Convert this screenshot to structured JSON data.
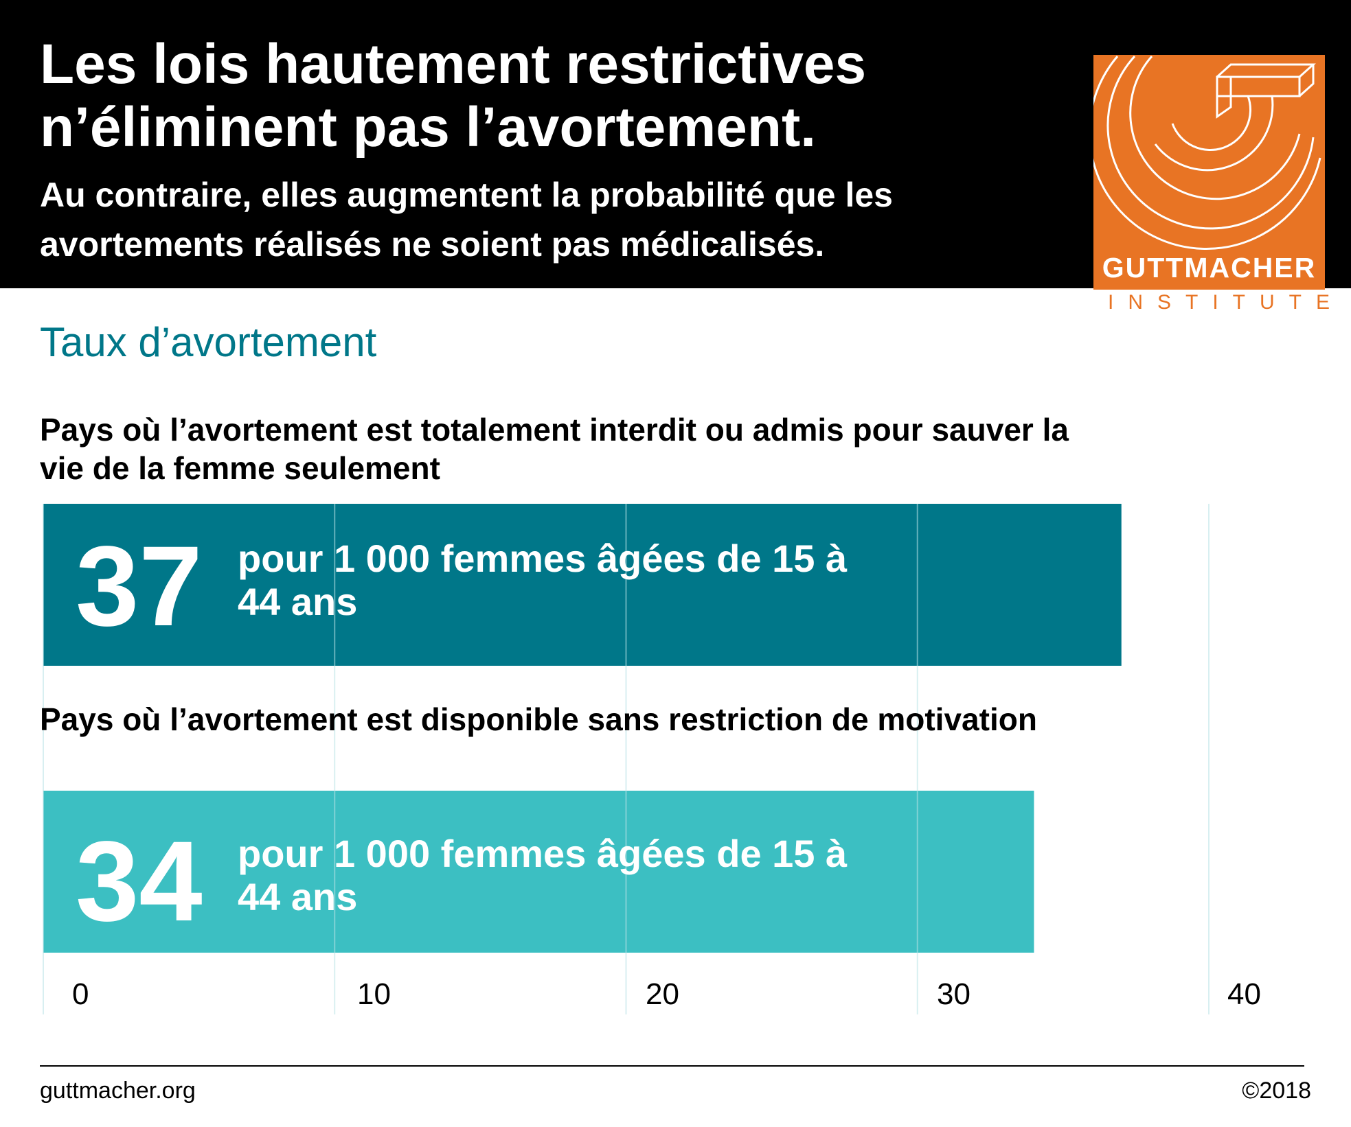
{
  "header": {
    "title": "Les lois hautement restrictives n’éliminent pas l’avortement.",
    "subtitle": "Au contraire, elles augmentent la probabilité que les avortements réalisés ne soient pas médicalisés."
  },
  "logo": {
    "name": "GUTTMACHER",
    "sub": "INSTITUTE",
    "color": "#e87424"
  },
  "chart_data": {
    "type": "bar",
    "orientation": "horizontal",
    "title": "Taux d’avortement",
    "categories": [
      "Pays où l’avortement est totalement interdit ou admis pour sauver la vie de la femme seulement",
      "Pays où l’avortement est disponible sans restriction de motivation"
    ],
    "values": [
      37,
      34
    ],
    "value_labels": [
      "37",
      "34"
    ],
    "unit_label": "pour 1 000 femmes âgées de 15 à 44 ans",
    "bar_colors": [
      "#007789",
      "#3cbfc2"
    ],
    "xlim": [
      0,
      40
    ],
    "xticks": [
      "0",
      "10",
      "20",
      "30",
      "40"
    ],
    "grid": true,
    "grid_color": "#b9e3e6"
  },
  "footer": {
    "site": "guttmacher.org",
    "copyright": "©2018"
  }
}
